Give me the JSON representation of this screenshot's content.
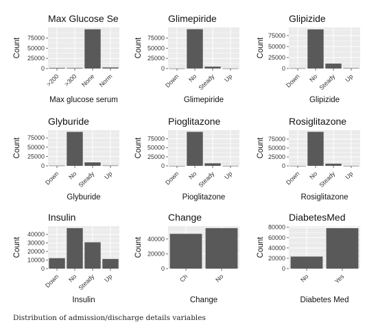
{
  "caption": "Distribution of admission/discharge details variables",
  "colors": {
    "panel_bg": "#ebebeb",
    "grid": "#ffffff",
    "bar": "#595959",
    "text": "#111111"
  },
  "chart_data": [
    {
      "type": "bar",
      "title": "Max Glucose Se",
      "xlabel": "Max glucose serum",
      "ylabel": "Count",
      "categories": [
        ">200",
        ">300",
        "None",
        "Norm"
      ],
      "values": [
        1500,
        1300,
        96400,
        2600
      ],
      "yticks": [
        0,
        25000,
        50000,
        75000
      ],
      "ylim": [
        0,
        101000
      ]
    },
    {
      "type": "bar",
      "title": "Glimepiride",
      "xlabel": "Glimepiride",
      "ylabel": "Count",
      "categories": [
        "Down",
        "No",
        "Steady",
        "Up"
      ],
      "values": [
        200,
        96600,
        4700,
        300
      ],
      "yticks": [
        0,
        25000,
        50000,
        75000
      ],
      "ylim": [
        0,
        101000
      ]
    },
    {
      "type": "bar",
      "title": "Glipizide",
      "xlabel": "Glipizide",
      "ylabel": "Count",
      "categories": [
        "Down",
        "No",
        "Steady",
        "Up"
      ],
      "values": [
        500,
        89000,
        11300,
        800
      ],
      "yticks": [
        0,
        25000,
        50000,
        75000
      ],
      "ylim": [
        0,
        93500
      ]
    },
    {
      "type": "bar",
      "title": "Glyburide",
      "xlabel": "Glyburide",
      "ylabel": "Count",
      "categories": [
        "Down",
        "No",
        "Steady",
        "Up"
      ],
      "values": [
        600,
        91100,
        9300,
        800
      ],
      "yticks": [
        0,
        25000,
        50000,
        75000
      ],
      "ylim": [
        0,
        95600
      ]
    },
    {
      "type": "bar",
      "title": "Pioglitazone",
      "xlabel": "Pioglitazone",
      "ylabel": "Count",
      "categories": [
        "Down",
        "No",
        "Steady",
        "Up"
      ],
      "values": [
        100,
        94400,
        7000,
        200
      ],
      "yticks": [
        0,
        25000,
        50000,
        75000
      ],
      "ylim": [
        0,
        99000
      ]
    },
    {
      "type": "bar",
      "title": "Rosiglitazone",
      "xlabel": "Rosiglitazone",
      "ylabel": "Count",
      "categories": [
        "Down",
        "No",
        "Steady",
        "Up"
      ],
      "values": [
        100,
        95400,
        6100,
        200
      ],
      "yticks": [
        0,
        25000,
        50000,
        75000
      ],
      "ylim": [
        0,
        100000
      ]
    },
    {
      "type": "bar",
      "title": "Insulin",
      "xlabel": "Insulin",
      "ylabel": "Count",
      "categories": [
        "Down",
        "No",
        "Steady",
        "Up"
      ],
      "values": [
        12200,
        47400,
        30800,
        11300
      ],
      "yticks": [
        0,
        10000,
        20000,
        30000,
        40000
      ],
      "ylim": [
        0,
        49700
      ]
    },
    {
      "type": "bar",
      "title": "Change",
      "xlabel": "Change",
      "ylabel": "Count",
      "categories": [
        "Ch",
        "No"
      ],
      "values": [
        47000,
        54700
      ],
      "yticks": [
        0,
        20000,
        40000
      ],
      "ylim": [
        0,
        57400
      ]
    },
    {
      "type": "bar",
      "title": "DiabetesMed",
      "xlabel": "Diabetes Med",
      "ylabel": "Count",
      "categories": [
        "No",
        "Yes"
      ],
      "values": [
        23400,
        78400
      ],
      "yticks": [
        0,
        20000,
        40000,
        60000,
        80000
      ],
      "ylim": [
        0,
        82300
      ]
    }
  ]
}
